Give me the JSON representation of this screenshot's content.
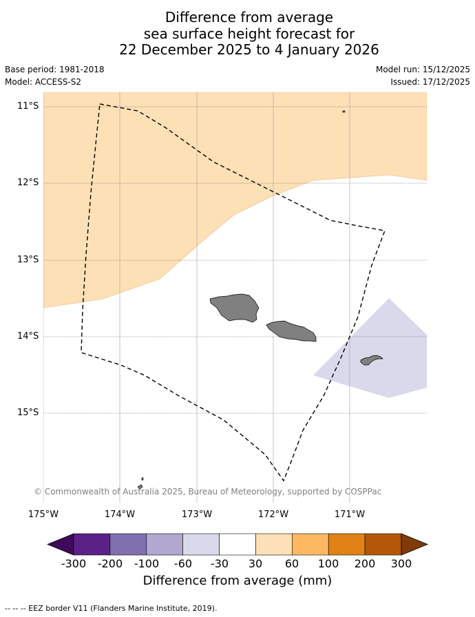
{
  "title_lines": [
    "Difference from average",
    "sea surface height forecast for",
    "22 December 2025 to 4 January 2026"
  ],
  "base_period": "Base period: 1981-2018",
  "model": "Model: ACCESS-S2",
  "model_run": "Model run: 15/12/2025",
  "issued": "Issued: 17/12/2025",
  "lat_labels": [
    "11°S",
    "12°S",
    "13°S",
    "14°S",
    "15°S"
  ],
  "lon_labels": [
    "175°W",
    "174°W",
    "173°W",
    "172°W",
    "171°W"
  ],
  "copyright": "© Commonwealth of Australia 2025, Bureau of Meteorology, supported by COSPPac",
  "colorbar": {
    "title": "Difference from average (mm)",
    "tick_labels": [
      "-300",
      "-200",
      "-100",
      "-60",
      "-30",
      "30",
      "60",
      "100",
      "200",
      "300"
    ],
    "colors": [
      "#3f0a5b",
      "#5a2186",
      "#8070b0",
      "#b1a8d0",
      "#d9d9eb",
      "#ffffff",
      "#fde0b6",
      "#fdb863",
      "#e08214",
      "#b35806",
      "#7f3b08"
    ]
  },
  "map_colors": {
    "positive_anomaly": "#fde0b6",
    "negative_anomaly": "#d9d9eb",
    "land": "#808080"
  },
  "footnote": "--  --  -- EEZ border V11 (Flanders Marine Institute, 2019)."
}
